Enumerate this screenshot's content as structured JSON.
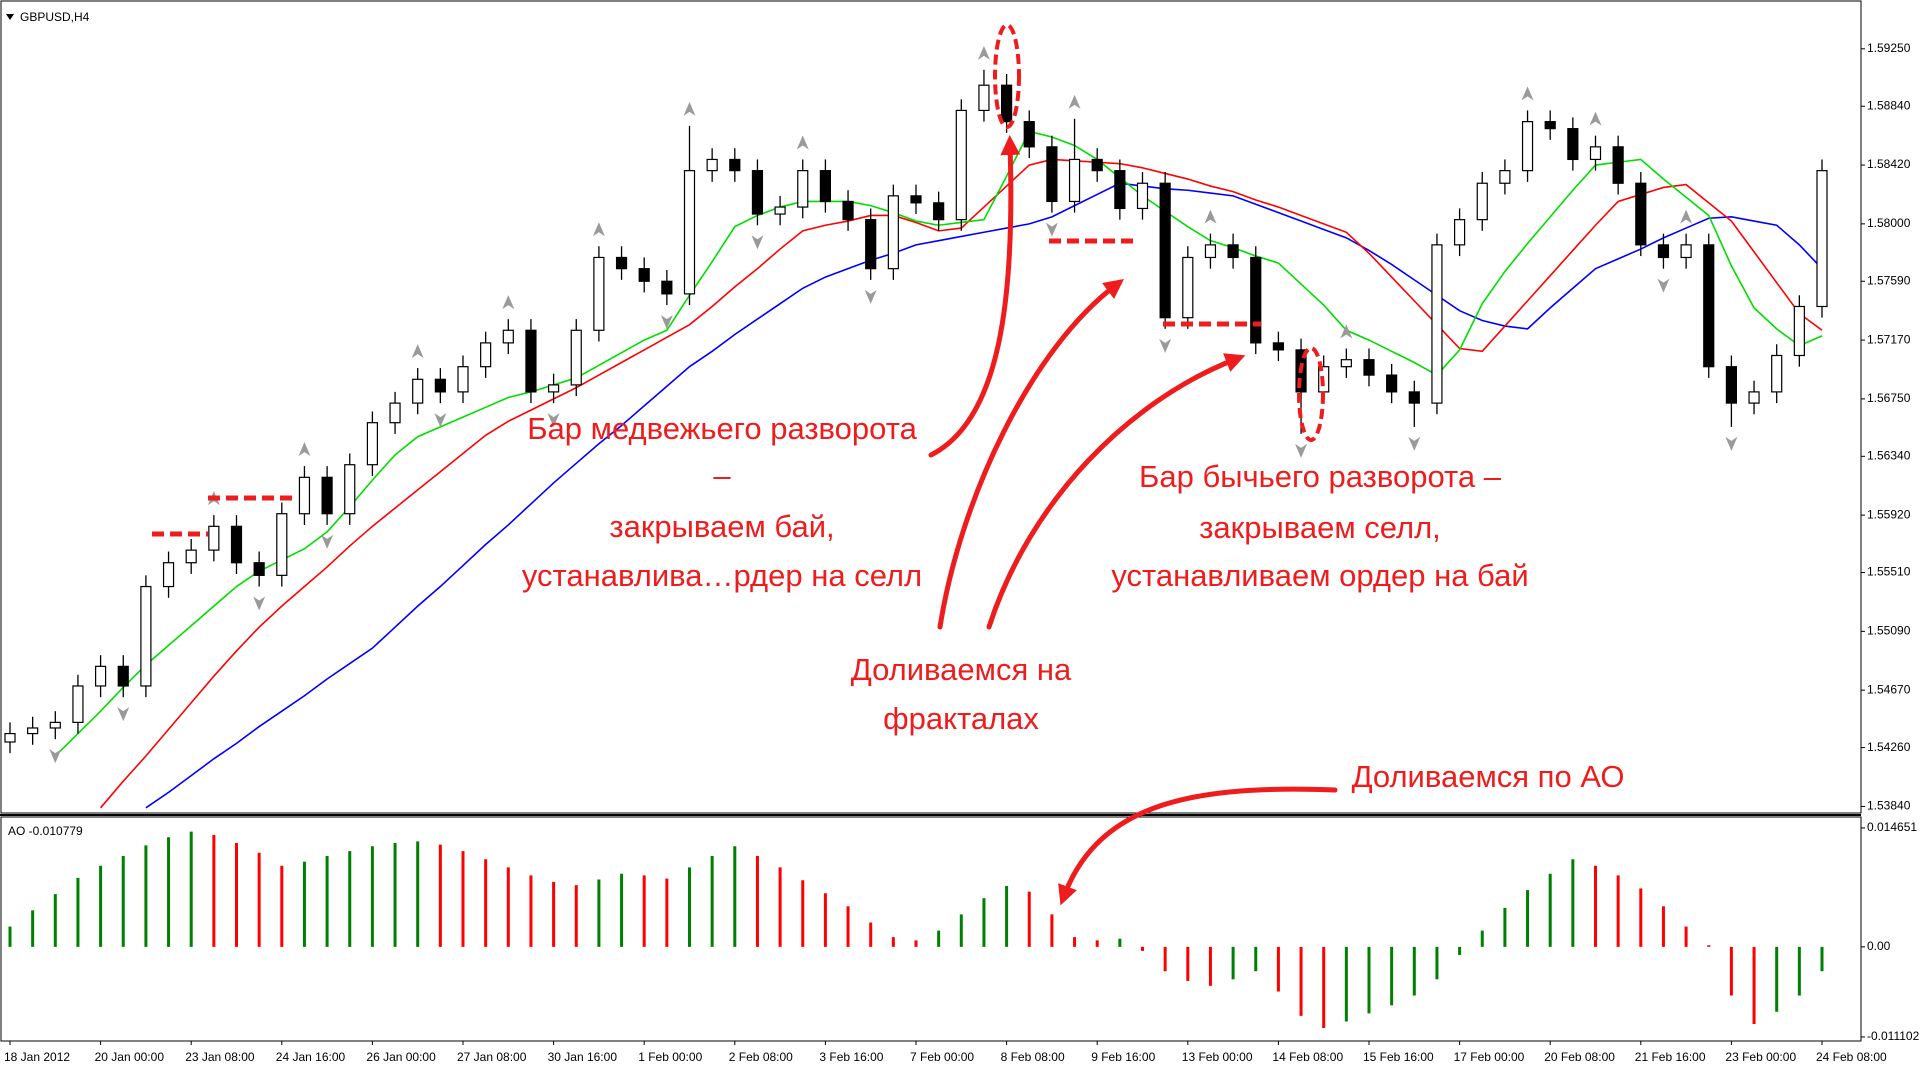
{
  "chart_data": [
    {
      "type": "candlestick",
      "title": "GBPUSD,H4",
      "categories": [
        "18 Jan 2012",
        null,
        null,
        null,
        "20 Jan 00:00",
        null,
        null,
        null,
        "23 Jan 08:00",
        null,
        null,
        null,
        "24 Jan 16:00",
        null,
        null,
        null,
        "26 Jan 00:00",
        null,
        null,
        null,
        "27 Jan 08:00",
        null,
        null,
        null,
        "30 Jan 16:00",
        null,
        null,
        null,
        "1 Feb 00:00",
        null,
        null,
        null,
        "2 Feb 08:00",
        null,
        null,
        null,
        "3 Feb 16:00",
        null,
        null,
        null,
        "7 Feb 00:00",
        null,
        null,
        null,
        "8 Feb 08:00",
        null,
        null,
        null,
        "9 Feb 16:00",
        null,
        null,
        null,
        "13 Feb 00:00",
        null,
        null,
        null,
        "14 Feb 08:00",
        null,
        null,
        null,
        "15 Feb 16:00",
        null,
        null,
        null,
        "17 Feb 00:00",
        null,
        null,
        null,
        "20 Feb 08:00",
        null,
        null,
        null,
        "21 Feb 16:00",
        null,
        null,
        null,
        "23 Feb 00:00",
        null,
        null,
        null,
        "24 Feb 08:00"
      ],
      "open": [
        1.543,
        1.5436,
        1.544,
        1.5444,
        1.547,
        1.5484,
        1.547,
        1.5541,
        1.5558,
        1.5567,
        1.5584,
        1.5558,
        1.5549,
        1.5593,
        1.5619,
        1.5593,
        1.5628,
        1.5658,
        1.5672,
        1.5689,
        1.568,
        1.5698,
        1.5715,
        1.5724,
        1.568,
        1.5685,
        1.5724,
        1.5776,
        1.5768,
        1.5759,
        1.575,
        1.5838,
        1.5846,
        1.5838,
        1.5807,
        1.5812,
        1.5838,
        1.5816,
        1.5803,
        1.5768,
        1.582,
        1.5815,
        1.5803,
        1.5881,
        1.5899,
        1.5873,
        1.5855,
        1.5816,
        1.5846,
        1.5838,
        1.5811,
        1.5829,
        1.5733,
        1.5776,
        1.5785,
        1.5776,
        1.5715,
        1.571,
        1.568,
        1.5698,
        1.5703,
        1.5692,
        1.568,
        1.5672,
        1.5785,
        1.5803,
        1.5829,
        1.5838,
        1.5873,
        1.5868,
        1.5846,
        1.5855,
        1.5829,
        1.5785,
        1.5776,
        1.5785,
        1.5698,
        1.5672,
        1.568,
        1.5706,
        1.5741
      ],
      "high": [
        1.5444,
        1.5448,
        1.5452,
        1.5478,
        1.5492,
        1.5492,
        1.5549,
        1.5566,
        1.5575,
        1.5592,
        1.5592,
        1.5566,
        1.5601,
        1.5627,
        1.5627,
        1.5636,
        1.5666,
        1.568,
        1.5697,
        1.5697,
        1.5706,
        1.5723,
        1.5732,
        1.5732,
        1.5693,
        1.5732,
        1.5784,
        1.5784,
        1.5776,
        1.5767,
        1.587,
        1.5854,
        1.5854,
        1.5846,
        1.582,
        1.5846,
        1.5846,
        1.5824,
        1.5811,
        1.5828,
        1.5828,
        1.5823,
        1.5889,
        1.591,
        1.5907,
        1.5881,
        1.5863,
        1.5875,
        1.5854,
        1.5846,
        1.5837,
        1.5837,
        1.5784,
        1.5793,
        1.5793,
        1.5784,
        1.5723,
        1.5718,
        1.5706,
        1.5711,
        1.5711,
        1.57,
        1.5688,
        1.5793,
        1.5811,
        1.5837,
        1.5846,
        1.5881,
        1.5881,
        1.5876,
        1.5863,
        1.5863,
        1.5837,
        1.5793,
        1.5793,
        1.5793,
        1.5706,
        1.5688,
        1.5714,
        1.5749,
        1.5846
      ],
      "low": [
        1.5422,
        1.5428,
        1.5432,
        1.5436,
        1.5462,
        1.5462,
        1.5462,
        1.5533,
        1.555,
        1.5559,
        1.555,
        1.5541,
        1.5541,
        1.5585,
        1.5585,
        1.5585,
        1.562,
        1.565,
        1.5664,
        1.5672,
        1.5672,
        1.569,
        1.5707,
        1.5672,
        1.5672,
        1.5677,
        1.5716,
        1.576,
        1.5751,
        1.5742,
        1.5742,
        1.583,
        1.583,
        1.5799,
        1.5799,
        1.5804,
        1.5808,
        1.5795,
        1.576,
        1.576,
        1.5807,
        1.5795,
        1.5795,
        1.5873,
        1.5865,
        1.5847,
        1.5808,
        1.5808,
        1.583,
        1.5803,
        1.5803,
        1.5725,
        1.5725,
        1.5768,
        1.5768,
        1.5707,
        1.5702,
        1.565,
        1.5672,
        1.569,
        1.5684,
        1.5672,
        1.5655,
        1.5664,
        1.5777,
        1.5795,
        1.5821,
        1.583,
        1.586,
        1.5838,
        1.5838,
        1.5821,
        1.5777,
        1.5768,
        1.5768,
        1.569,
        1.5655,
        1.5664,
        1.5672,
        1.5698,
        1.5733
      ],
      "close": [
        1.5436,
        1.544,
        1.5444,
        1.547,
        1.5484,
        1.547,
        1.5541,
        1.5558,
        1.5567,
        1.5584,
        1.5558,
        1.5549,
        1.5593,
        1.5619,
        1.5593,
        1.5628,
        1.5658,
        1.5672,
        1.5689,
        1.568,
        1.5698,
        1.5715,
        1.5724,
        1.568,
        1.5685,
        1.5724,
        1.5776,
        1.5768,
        1.5759,
        1.575,
        1.5838,
        1.5846,
        1.5838,
        1.5807,
        1.5812,
        1.5838,
        1.5816,
        1.5803,
        1.5768,
        1.582,
        1.5815,
        1.5803,
        1.5881,
        1.5899,
        1.5873,
        1.5855,
        1.5816,
        1.5846,
        1.5838,
        1.5811,
        1.5829,
        1.5733,
        1.5776,
        1.5785,
        1.5776,
        1.5715,
        1.571,
        1.568,
        1.5698,
        1.5703,
        1.5692,
        1.568,
        1.5672,
        1.5785,
        1.5803,
        1.5829,
        1.5838,
        1.5873,
        1.5868,
        1.5846,
        1.5855,
        1.5829,
        1.5785,
        1.5776,
        1.5785,
        1.5698,
        1.5672,
        1.568,
        1.5706,
        1.5741,
        1.5838
      ],
      "up_color": "#ffffff",
      "down_color": "#000000",
      "outline_color": "#000000",
      "lines": [
        {
          "color": "#0000ff",
          "values": [
            null,
            null,
            null,
            null,
            null,
            null,
            1.5383,
            1.5394,
            1.5406,
            1.5418,
            1.5429,
            1.5441,
            1.5452,
            1.5463,
            1.5475,
            1.5486,
            1.5497,
            1.5512,
            1.5527,
            1.5541,
            1.5556,
            1.5571,
            1.5585,
            1.56,
            1.5615,
            1.5629,
            1.5643,
            1.5656,
            1.567,
            1.5684,
            1.5698,
            1.5709,
            1.5721,
            1.5732,
            1.5743,
            1.5754,
            1.5762,
            1.5768,
            1.5774,
            1.5779,
            1.5785,
            1.5788,
            1.5791,
            1.5794,
            1.5797,
            1.58,
            1.5805,
            1.5813,
            1.5821,
            1.5829,
            1.5827,
            1.5825,
            1.5824,
            1.5822,
            1.582,
            1.5814,
            1.5808,
            1.5802,
            1.5796,
            1.579,
            1.5781,
            1.5771,
            1.576,
            1.5749,
            1.5738,
            1.5731,
            1.5727,
            1.5725,
            1.574,
            1.5754,
            1.5768,
            1.5775,
            1.5782,
            1.579,
            1.5797,
            1.5804,
            1.5805,
            1.5802,
            1.5799,
            1.5785,
            1.5768
          ]
        },
        {
          "color": "#ff0000",
          "values": [
            null,
            null,
            null,
            null,
            1.5383,
            1.5402,
            1.542,
            1.5439,
            1.5458,
            1.5477,
            1.5495,
            1.5512,
            1.5527,
            1.5541,
            1.5555,
            1.557,
            1.5584,
            1.5597,
            1.561,
            1.5623,
            1.5636,
            1.5649,
            1.5659,
            1.5667,
            1.5675,
            1.5683,
            1.5692,
            1.5701,
            1.571,
            1.5719,
            1.5728,
            1.5741,
            1.5755,
            1.5768,
            1.5782,
            1.5795,
            1.5799,
            1.5802,
            1.5806,
            1.5806,
            1.5801,
            1.5795,
            1.5797,
            1.5812,
            1.5827,
            1.5842,
            1.5846,
            1.5845,
            1.5844,
            1.5843,
            1.584,
            1.5836,
            1.5832,
            1.5827,
            1.5823,
            1.5817,
            1.5812,
            1.5806,
            1.58,
            1.5794,
            1.5779,
            1.5762,
            1.5745,
            1.5728,
            1.5711,
            1.5709,
            1.5727,
            1.5745,
            1.5763,
            1.5781,
            1.5799,
            1.5816,
            1.5821,
            1.5826,
            1.5828,
            1.5815,
            1.5802,
            1.578,
            1.5758,
            1.5736,
            1.5724
          ]
        },
        {
          "color": "#00dd00",
          "values": [
            null,
            null,
            1.542,
            1.5436,
            1.5452,
            1.5469,
            1.5485,
            1.5499,
            1.5513,
            1.5527,
            1.5541,
            1.5552,
            1.556,
            1.5568,
            1.558,
            1.5598,
            1.5617,
            1.5635,
            1.5648,
            1.5655,
            1.5662,
            1.5669,
            1.5676,
            1.568,
            1.5685,
            1.569,
            1.5699,
            1.5708,
            1.5717,
            1.5724,
            1.5749,
            1.5773,
            1.5798,
            1.5806,
            1.5812,
            1.5816,
            1.5816,
            1.5816,
            1.5813,
            1.5808,
            1.5802,
            1.5799,
            1.5801,
            1.5803,
            1.5834,
            1.5866,
            1.5862,
            1.5856,
            1.5846,
            1.5833,
            1.582,
            1.5809,
            1.5798,
            1.5788,
            1.5783,
            1.5777,
            1.5772,
            1.5757,
            1.5742,
            1.5724,
            1.5717,
            1.5709,
            1.5701,
            1.5692,
            1.571,
            1.5743,
            1.5766,
            1.5786,
            1.5805,
            1.5824,
            1.5842,
            1.5844,
            1.5846,
            1.5832,
            1.5819,
            1.5806,
            1.577,
            1.574,
            1.5725,
            1.5713,
            1.572
          ]
        }
      ],
      "fractals_up": [
        null,
        null,
        null,
        null,
        null,
        null,
        null,
        null,
        null,
        1.5592,
        null,
        null,
        null,
        1.5627,
        null,
        null,
        null,
        null,
        1.5697,
        null,
        null,
        null,
        1.5732,
        null,
        null,
        null,
        1.5784,
        null,
        null,
        null,
        1.587,
        null,
        null,
        null,
        null,
        1.5846,
        null,
        null,
        null,
        null,
        null,
        null,
        null,
        1.591,
        null,
        null,
        null,
        1.5875,
        null,
        null,
        null,
        null,
        null,
        1.5793,
        null,
        null,
        null,
        null,
        null,
        1.5711,
        null,
        null,
        null,
        null,
        null,
        null,
        null,
        1.5881,
        null,
        null,
        1.5863,
        null,
        null,
        null,
        1.5793,
        null,
        null,
        null,
        null,
        null,
        null
      ],
      "fractals_down": [
        null,
        null,
        1.5432,
        null,
        null,
        1.5462,
        null,
        null,
        null,
        null,
        null,
        1.5541,
        null,
        null,
        1.5585,
        null,
        null,
        null,
        null,
        1.5672,
        null,
        null,
        null,
        null,
        1.5672,
        null,
        null,
        null,
        null,
        1.5742,
        null,
        null,
        null,
        1.5799,
        null,
        null,
        null,
        null,
        1.576,
        null,
        null,
        null,
        null,
        null,
        null,
        null,
        1.5808,
        null,
        null,
        null,
        null,
        1.5725,
        null,
        null,
        null,
        null,
        null,
        1.565,
        null,
        null,
        null,
        null,
        1.5655,
        null,
        null,
        null,
        null,
        null,
        null,
        null,
        null,
        null,
        null,
        1.5768,
        null,
        null,
        1.5655,
        null,
        null,
        null,
        null
      ],
      "fractal_color": "#9a9a9a",
      "ylim": [
        1.538,
        1.5957
      ],
      "yticks": [
        {
          "value": 1.5925,
          "label": "1.59250"
        },
        {
          "value": 1.5884,
          "label": "1.58840"
        },
        {
          "value": 1.5842,
          "label": "1.58420"
        },
        {
          "value": 1.58,
          "label": "1.58000"
        },
        {
          "value": 1.5759,
          "label": "1.57590"
        },
        {
          "value": 1.5717,
          "label": "1.57170"
        },
        {
          "value": 1.5675,
          "label": "1.56750"
        },
        {
          "value": 1.5634,
          "label": "1.56340"
        },
        {
          "value": 1.5592,
          "label": "1.55920"
        },
        {
          "value": 1.5551,
          "label": "1.55510"
        },
        {
          "value": 1.5509,
          "label": "1.55090"
        },
        {
          "value": 1.5467,
          "label": "1.54670"
        },
        {
          "value": 1.5426,
          "label": "1.54260"
        },
        {
          "value": 1.5384,
          "label": "1.53840"
        }
      ],
      "annotations": [
        {
          "lines": [
            "Бар медвежьего разворота",
            "–",
            "закрываем бай,",
            "устанавлива…рдер на селл"
          ]
        },
        {
          "lines": [
            "Бар бычьего разворота –",
            "закрываем селл,",
            "устанавливаем ордер на бай"
          ]
        },
        {
          "lines": [
            "Доливаемся на",
            "фракталах"
          ]
        },
        {
          "lines": [
            "Доливаемся по АО"
          ]
        }
      ]
    },
    {
      "type": "bar",
      "title": "AO -0.010779",
      "values": [
        0.0025,
        0.0045,
        0.0065,
        0.0085,
        0.01,
        0.0112,
        0.0125,
        0.0135,
        0.0142,
        0.0138,
        0.0128,
        0.0116,
        0.01,
        0.0105,
        0.0112,
        0.0118,
        0.0124,
        0.0128,
        0.013,
        0.0126,
        0.0118,
        0.0108,
        0.0098,
        0.0088,
        0.008,
        0.0076,
        0.0083,
        0.009,
        0.0088,
        0.0084,
        0.0098,
        0.0112,
        0.0124,
        0.0112,
        0.0098,
        0.0082,
        0.0066,
        0.005,
        0.003,
        0.0012,
        0.0008,
        0.002,
        0.004,
        0.006,
        0.0075,
        0.0068,
        0.004,
        0.0012,
        0.0008,
        0.001,
        -0.0005,
        -0.003,
        -0.0042,
        -0.0048,
        -0.004,
        -0.003,
        -0.0055,
        -0.0085,
        -0.01,
        -0.0092,
        -0.0082,
        -0.0072,
        -0.006,
        -0.004,
        -0.001,
        0.002,
        0.0048,
        0.007,
        0.009,
        0.0108,
        0.01,
        0.0088,
        0.0072,
        0.005,
        0.0025,
        0.0002,
        -0.006,
        -0.0095,
        -0.008,
        -0.006,
        -0.003
      ],
      "up_color": "#008000",
      "down_color": "#ff0000",
      "ylim": [
        -0.0116,
        0.016
      ],
      "yticks": [
        0.014651,
        {
          "value": 0,
          "label": "0.00"
        },
        -0.011102
      ]
    }
  ]
}
